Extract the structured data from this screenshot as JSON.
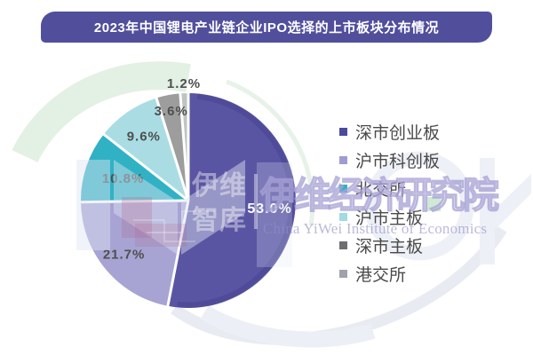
{
  "title": "2023年中国锂电产业链企业IPO选择的上市板块分布情况",
  "chart_data": {
    "type": "pie",
    "title": "2023年中国锂电产业链企业IPO选择的上市板块分布情况",
    "start_at": "12-oclock",
    "direction": "clockwise",
    "legend_position": "right",
    "labels_shown": true,
    "series": [
      {
        "name": "深市创业板",
        "value": 53.0,
        "label": "53.0%",
        "color": "#5a55a3",
        "legend_color": "#4b4a9d",
        "label_color": "#ffffff"
      },
      {
        "name": "沪市科创板",
        "value": 21.7,
        "label": "21.7%",
        "color": "#a7a4d4",
        "legend_color": "#9e9cd1",
        "label_color": "#4f4f4f"
      },
      {
        "name": "北交所",
        "value": 10.8,
        "label": "10.8%",
        "color": "#30b2c4",
        "legend_color": "#2fb3c3",
        "label_color": "#4f4f4f"
      },
      {
        "name": "沪市主板",
        "value": 9.6,
        "label": "9.6%",
        "color": "#a9dde3",
        "legend_color": "#a0dbe1",
        "label_color": "#4f4f4f"
      },
      {
        "name": "深市主板",
        "value": 3.6,
        "label": "3.6%",
        "color": "#9d9d9d",
        "legend_color": "#6e6e72",
        "label_color": "#4f4f4f"
      },
      {
        "name": "港交所",
        "value": 1.2,
        "label": "1.2%",
        "color": "#bec4c1",
        "legend_color": "#9fa2ab",
        "label_color": "#4f4f4f"
      }
    ]
  },
  "watermark": {
    "brand_line1": "伊维",
    "brand_line2": "智库",
    "institute_cn": "伊维经济研究院",
    "institute_en": "China YiWei Institute of Economics"
  },
  "colors": {
    "banner_bg": "#514f9c",
    "banner_text": "#ffffff",
    "legend_text": "#4a4a4a",
    "slice_gap": "#ffffff",
    "big_slice_rim": "#4c4793"
  }
}
